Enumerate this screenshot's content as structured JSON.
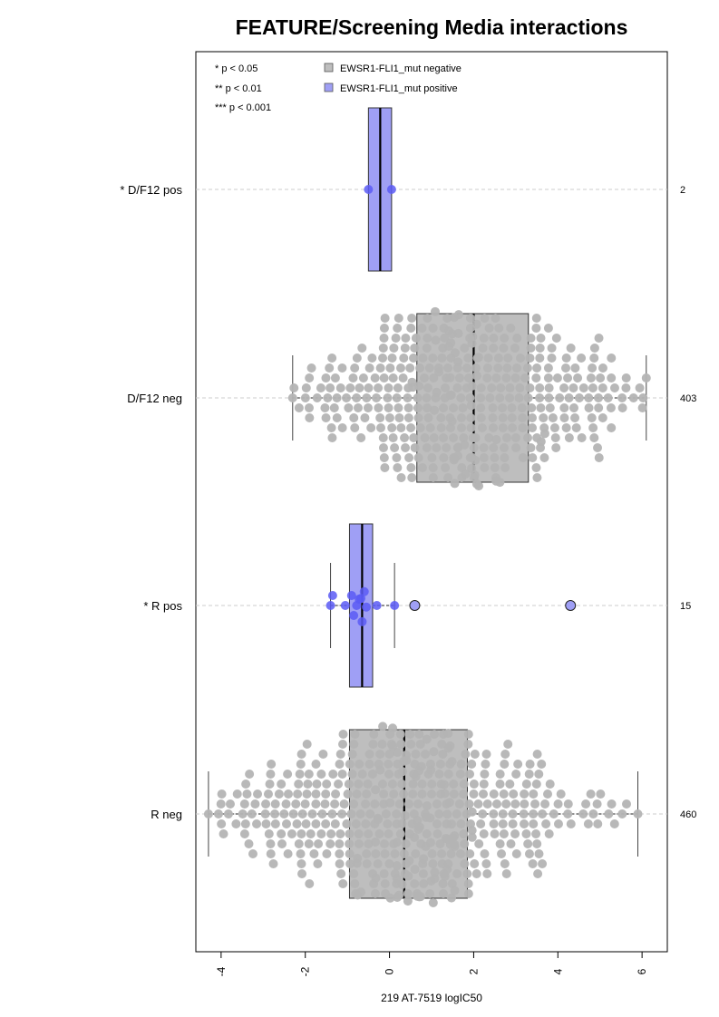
{
  "chart_data": {
    "type": "boxplot",
    "title": "FEATURE/Screening Media interactions",
    "xlabel": "219 AT-7519 logIC50",
    "xlim": [
      -4.6,
      6.6
    ],
    "xticks": [
      -4,
      -2,
      0,
      2,
      4,
      6
    ],
    "xtick_labels": [
      "-4",
      "-2",
      "0",
      "2",
      "4",
      "6"
    ],
    "grid": "dashed horizontal lines at each group",
    "significance_legend": [
      "* p < 0.05",
      "** p < 0.01",
      "*** p < 0.001"
    ],
    "legend": [
      {
        "label": "EWSR1-FLI1_mut negative",
        "color": "#bebebe"
      },
      {
        "label": "EWSR1-FLI1_mut positive",
        "color": "#9f9ff5"
      }
    ],
    "groups": [
      {
        "label": "* D/F12 pos",
        "n_label": "2",
        "status": "positive",
        "whisker_low": -0.5,
        "q1": -0.5,
        "median": -0.22,
        "q3": 0.05,
        "whisker_high": 0.05,
        "points": [
          -0.5,
          0.05
        ]
      },
      {
        "label": "D/F12 neg",
        "n_label": "403",
        "status": "negative",
        "whisker_low": -2.3,
        "q1": 0.65,
        "median": 2.0,
        "q3": 3.3,
        "whisker_high": 6.1,
        "n_points": 403
      },
      {
        "label": "* R pos",
        "n_label": "15",
        "status": "positive",
        "whisker_low": -1.4,
        "q1": -0.95,
        "median": -0.65,
        "q3": -0.4,
        "whisker_high": 0.12,
        "points": [
          -1.4,
          -1.35,
          -1.05,
          -0.9,
          -0.85,
          -0.78,
          -0.72,
          -0.68,
          -0.65,
          -0.6,
          -0.55,
          -0.3,
          0.12,
          0.6,
          4.3
        ],
        "outliers": [
          0.6,
          4.3
        ]
      },
      {
        "label": "R neg",
        "n_label": "460",
        "status": "negative",
        "whisker_low": -4.3,
        "q1": -0.95,
        "median": 0.35,
        "q3": 1.85,
        "whisker_high": 5.9,
        "n_points": 460
      }
    ]
  }
}
